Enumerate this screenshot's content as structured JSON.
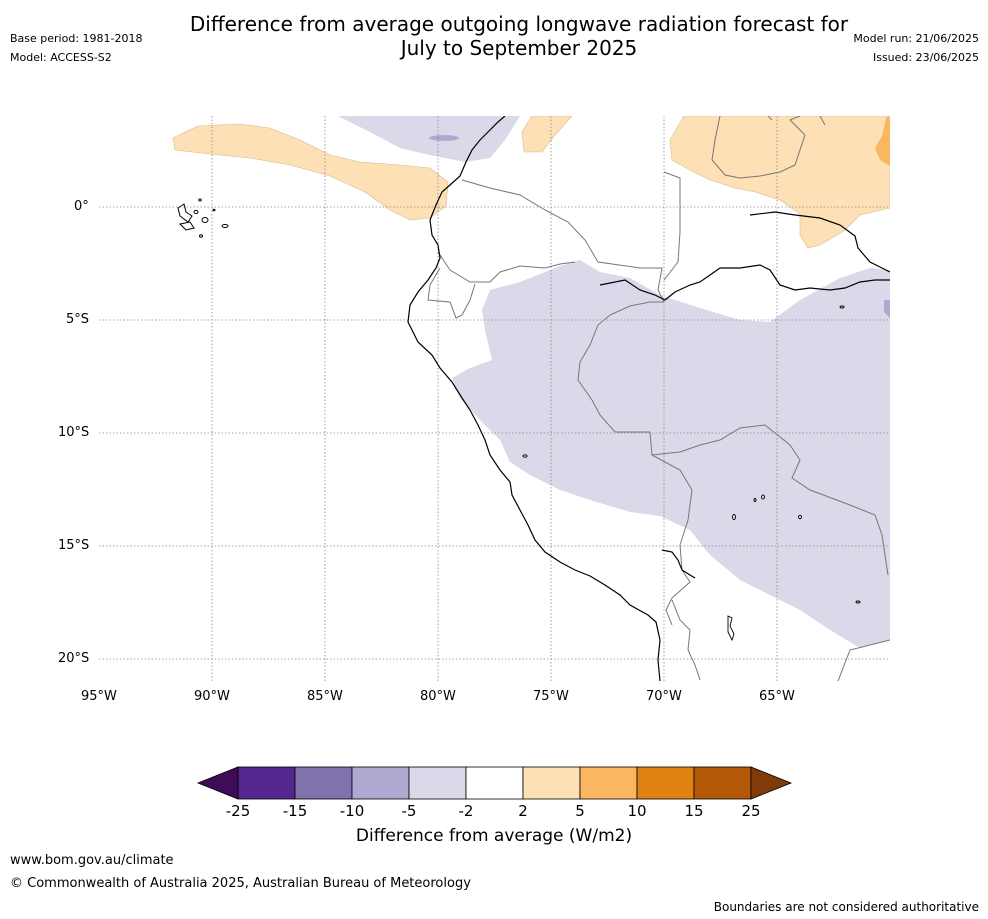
{
  "header": {
    "title_line1": "Difference from average outgoing longwave radiation forecast for",
    "title_line2": "July to September 2025",
    "base_period": "Base period: 1981-2018",
    "model": "Model: ACCESS-S2",
    "model_run": "Model run: 21/06/2025",
    "issued": "Issued: 23/06/2025"
  },
  "map": {
    "lat_labels": [
      "0°",
      "5°S",
      "10°S",
      "15°S",
      "20°S"
    ],
    "lon_labels": [
      "95°W",
      "90°W",
      "85°W",
      "80°W",
      "75°W",
      "70°W",
      "65°W"
    ]
  },
  "colorbar": {
    "title": "Difference from average (W/m2)",
    "ticks": [
      "-25",
      "-15",
      "-10",
      "-5",
      "-2",
      "2",
      "5",
      "10",
      "15",
      "25"
    ],
    "colors": [
      "#3f0d58",
      "#54278f",
      "#7f72ad",
      "#b0a8d1",
      "#d9d9ea",
      "#ffffff",
      "#fde0b5",
      "#fbb661",
      "#e08214",
      "#b35806",
      "#7f3b08"
    ]
  },
  "footer": {
    "url": "www.bom.gov.au/climate",
    "copyright": "© Commonwealth of Australia 2025, Australian Bureau of Meteorology",
    "disclaimer": "Boundaries are not considered authoritative"
  }
}
